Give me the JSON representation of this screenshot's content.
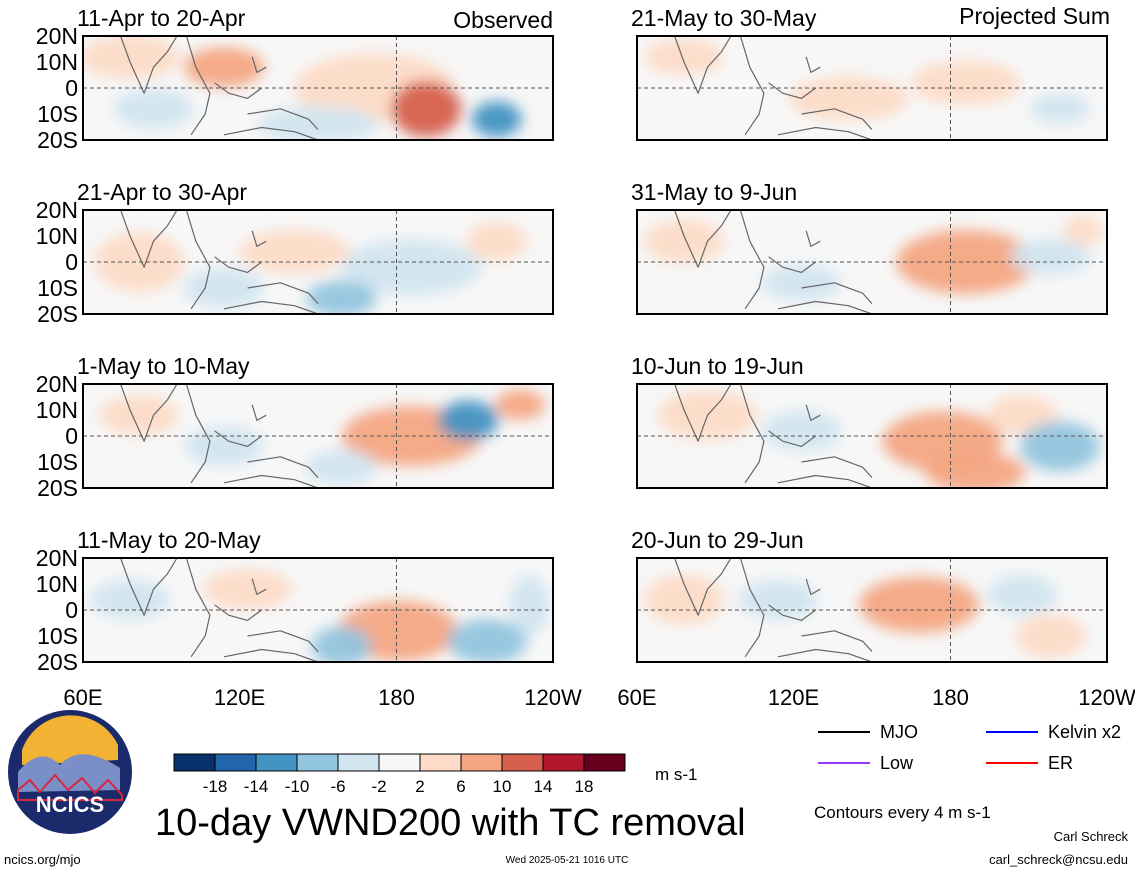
{
  "chart_data": {
    "type": "heatmap",
    "variable": "10-day VWND200 with TC removal",
    "units": "m s-1",
    "x_axis": {
      "ticks": [
        "60E",
        "120E",
        "180",
        "120W"
      ]
    },
    "y_axis": {
      "ticks": [
        "20N",
        "10N",
        "0",
        "10S",
        "20S"
      ]
    },
    "observed_label": "Observed",
    "projected_label": "Projected Sum",
    "panels": [
      {
        "title": "11-Apr to 20-Apr",
        "group": "observed"
      },
      {
        "title": "21-Apr to 30-Apr",
        "group": "observed"
      },
      {
        "title": "1-May to 10-May",
        "group": "observed"
      },
      {
        "title": "11-May to 20-May",
        "group": "observed"
      },
      {
        "title": "21-May to 30-May",
        "group": "projected"
      },
      {
        "title": "31-May to 9-Jun",
        "group": "projected"
      },
      {
        "title": "10-Jun to 19-Jun",
        "group": "projected"
      },
      {
        "title": "20-Jun to 29-Jun",
        "group": "projected"
      }
    ],
    "colorbar": {
      "labels": [
        "-18",
        "-14",
        "-10",
        "-6",
        "-2",
        "2",
        "6",
        "10",
        "14",
        "18"
      ],
      "colors": [
        "#08306b",
        "#2166ac",
        "#4393c3",
        "#92c5de",
        "#d1e5f0",
        "#f7f7f7",
        "#fddbc7",
        "#f4a582",
        "#d6604d",
        "#b2182b",
        "#67001f"
      ]
    },
    "contour_legend": [
      {
        "label": "MJO",
        "color": "#000000"
      },
      {
        "label": "Kelvin x2",
        "color": "#0000ff"
      },
      {
        "label": "Low",
        "color": "#9933ff"
      },
      {
        "label": "ER",
        "color": "#ff0000"
      }
    ],
    "contour_note": "Contours every 4 m s-1"
  },
  "footer": {
    "logo_text": "NCICS",
    "site": "ncics.org/mjo",
    "timestamp": "Wed 2025-05-21 1016 UTC",
    "author": "Carl Schreck",
    "email": "carl_schreck@ncsu.edu"
  }
}
